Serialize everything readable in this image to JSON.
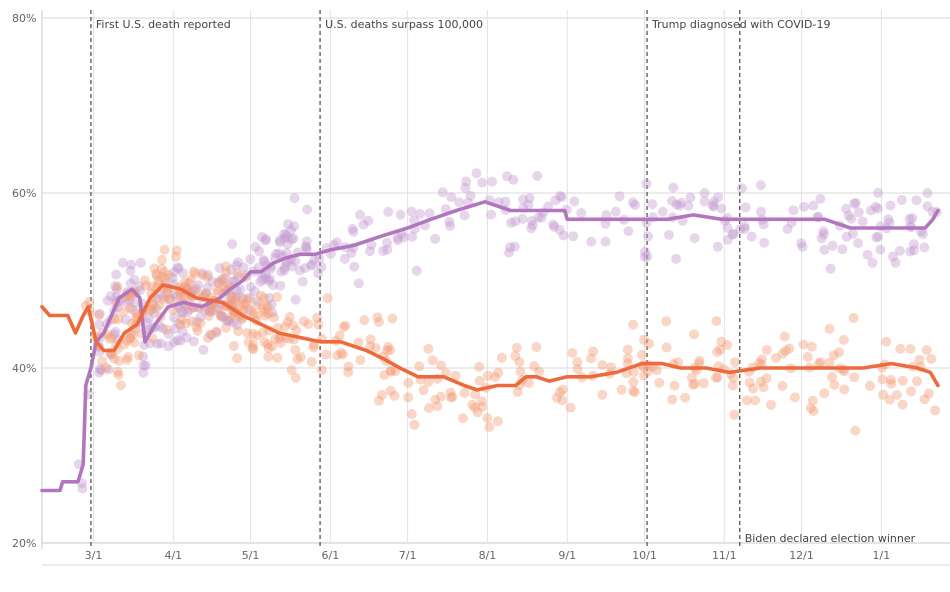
{
  "chart_data": {
    "type": "scatter",
    "y_tick_labels": [
      "80%",
      "60%",
      "40%",
      "20%"
    ],
    "y_ticks": [
      80,
      60,
      40,
      20
    ],
    "ylim": [
      20,
      80
    ],
    "x_axis_start": "2020-02-10",
    "x_axis_end": "2021-01-23",
    "x_ticks": [
      {
        "label": "3/1",
        "date": "2020-03-01"
      },
      {
        "label": "4/1",
        "date": "2020-04-01"
      },
      {
        "label": "5/1",
        "date": "2020-05-01"
      },
      {
        "label": "6/1",
        "date": "2020-06-01"
      },
      {
        "label": "7/1",
        "date": "2020-07-01"
      },
      {
        "label": "8/1",
        "date": "2020-08-01"
      },
      {
        "label": "9/1",
        "date": "2020-09-01"
      },
      {
        "label": "10/1",
        "date": "2020-10-01"
      },
      {
        "label": "11/1",
        "date": "2020-11-01"
      },
      {
        "label": "12/1",
        "date": "2020-12-01"
      },
      {
        "label": "1/1",
        "date": "2021-01-01"
      }
    ],
    "grid": true,
    "colors": {
      "purple": "#b276bf",
      "orange": "#ec6a3c",
      "purple_points": "#c39bd0",
      "orange_points": "#f39e77"
    },
    "annotations": [
      {
        "date": "2020-02-29",
        "text": "First U.S. death reported"
      },
      {
        "date": "2020-05-28",
        "text": "U.S. deaths surpass 100,000"
      },
      {
        "date": "2020-10-02",
        "text": "Trump diagnosed with COVID-19"
      },
      {
        "date": "2020-11-07",
        "text": "Biden declared election winner"
      }
    ],
    "series": [
      {
        "color": "purple",
        "trend": [
          [
            "2020-02-10",
            26
          ],
          [
            "2020-02-17",
            26
          ],
          [
            "2020-02-18",
            27
          ],
          [
            "2020-02-24",
            27
          ],
          [
            "2020-02-25",
            28
          ],
          [
            "2020-02-26",
            29
          ],
          [
            "2020-02-27",
            38
          ],
          [
            "2020-02-29",
            40
          ],
          [
            "2020-03-02",
            43
          ],
          [
            "2020-03-05",
            44
          ],
          [
            "2020-03-08",
            46
          ],
          [
            "2020-03-11",
            48
          ],
          [
            "2020-03-16",
            49
          ],
          [
            "2020-03-19",
            48
          ],
          [
            "2020-03-21",
            43
          ],
          [
            "2020-03-25",
            45
          ],
          [
            "2020-03-30",
            47
          ],
          [
            "2020-04-05",
            47.5
          ],
          [
            "2020-04-12",
            47
          ],
          [
            "2020-04-19",
            48
          ],
          [
            "2020-04-23",
            49
          ],
          [
            "2020-04-28",
            50
          ],
          [
            "2020-05-01",
            51
          ],
          [
            "2020-05-05",
            51
          ],
          [
            "2020-05-10",
            52
          ],
          [
            "2020-05-14",
            52.5
          ],
          [
            "2020-05-20",
            53
          ],
          [
            "2020-05-26",
            53
          ],
          [
            "2020-06-01",
            53.5
          ],
          [
            "2020-06-10",
            54
          ],
          [
            "2020-06-20",
            55
          ],
          [
            "2020-07-01",
            56
          ],
          [
            "2020-07-10",
            57
          ],
          [
            "2020-07-20",
            58
          ],
          [
            "2020-07-31",
            59
          ],
          [
            "2020-08-10",
            58
          ],
          [
            "2020-08-20",
            58
          ],
          [
            "2020-08-31",
            58
          ],
          [
            "2020-09-01",
            57
          ],
          [
            "2020-09-15",
            57
          ],
          [
            "2020-09-30",
            57
          ],
          [
            "2020-10-10",
            57
          ],
          [
            "2020-10-20",
            57.5
          ],
          [
            "2020-10-31",
            57
          ],
          [
            "2020-11-10",
            57
          ],
          [
            "2020-11-20",
            57
          ],
          [
            "2020-12-01",
            57
          ],
          [
            "2020-12-10",
            57
          ],
          [
            "2020-12-20",
            56
          ],
          [
            "2021-01-01",
            56
          ],
          [
            "2021-01-10",
            56
          ],
          [
            "2021-01-18",
            56
          ],
          [
            "2021-01-21",
            57
          ],
          [
            "2021-01-23",
            58
          ]
        ]
      },
      {
        "color": "orange",
        "trend": [
          [
            "2020-02-10",
            47
          ],
          [
            "2020-02-13",
            46
          ],
          [
            "2020-02-20",
            46
          ],
          [
            "2020-02-23",
            44
          ],
          [
            "2020-02-26",
            46
          ],
          [
            "2020-02-28",
            47
          ],
          [
            "2020-03-02",
            43
          ],
          [
            "2020-03-05",
            42
          ],
          [
            "2020-03-09",
            42
          ],
          [
            "2020-03-13",
            44
          ],
          [
            "2020-03-18",
            45
          ],
          [
            "2020-03-23",
            48
          ],
          [
            "2020-03-28",
            49.5
          ],
          [
            "2020-04-04",
            49
          ],
          [
            "2020-04-10",
            48
          ],
          [
            "2020-04-20",
            47.5
          ],
          [
            "2020-04-28",
            46
          ],
          [
            "2020-05-05",
            45
          ],
          [
            "2020-05-12",
            44
          ],
          [
            "2020-05-20",
            43.5
          ],
          [
            "2020-05-28",
            43
          ],
          [
            "2020-06-05",
            43
          ],
          [
            "2020-06-15",
            42
          ],
          [
            "2020-06-22",
            41
          ],
          [
            "2020-06-28",
            40
          ],
          [
            "2020-07-05",
            39
          ],
          [
            "2020-07-15",
            39
          ],
          [
            "2020-07-23",
            38
          ],
          [
            "2020-07-28",
            37.5
          ],
          [
            "2020-08-05",
            38
          ],
          [
            "2020-08-12",
            38
          ],
          [
            "2020-08-16",
            39
          ],
          [
            "2020-08-20",
            39
          ],
          [
            "2020-08-25",
            38.5
          ],
          [
            "2020-09-01",
            39
          ],
          [
            "2020-09-10",
            39
          ],
          [
            "2020-09-20",
            39.5
          ],
          [
            "2020-09-30",
            40.5
          ],
          [
            "2020-10-08",
            40.5
          ],
          [
            "2020-10-15",
            40
          ],
          [
            "2020-10-25",
            40
          ],
          [
            "2020-11-03",
            39.5
          ],
          [
            "2020-11-15",
            40
          ],
          [
            "2020-11-25",
            40
          ],
          [
            "2020-12-05",
            40
          ],
          [
            "2020-12-15",
            40
          ],
          [
            "2020-12-25",
            40
          ],
          [
            "2021-01-05",
            40.5
          ],
          [
            "2021-01-15",
            40
          ],
          [
            "2021-01-20",
            39.5
          ],
          [
            "2021-01-23",
            38
          ]
        ]
      }
    ]
  }
}
